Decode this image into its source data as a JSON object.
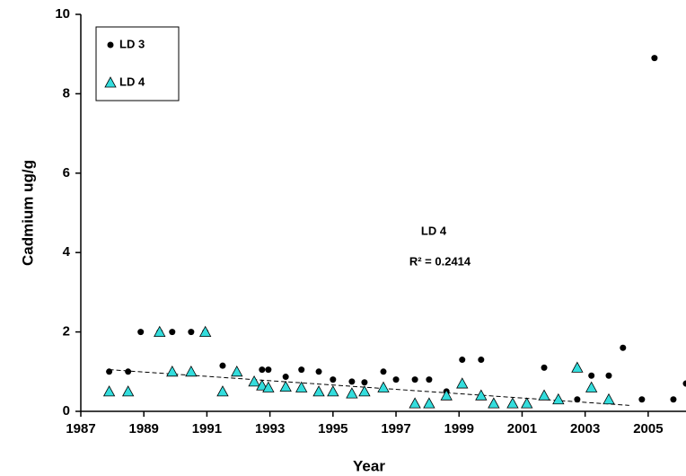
{
  "chart_data": {
    "type": "scatter",
    "xlabel": "Year",
    "ylabel": "Cadmium ug/g",
    "xlim": [
      1987,
      2006.2
    ],
    "ylim": [
      0,
      10
    ],
    "xticks": [
      1987,
      1989,
      1991,
      1993,
      1995,
      1997,
      1999,
      2001,
      2003,
      2005
    ],
    "yticks": [
      0,
      2,
      4,
      6,
      8,
      10
    ],
    "legend": "upper left",
    "series": [
      {
        "name": "LD 3",
        "color": "#000000",
        "marker": "circle",
        "x": [
          1987.9,
          1988.5,
          1988.9,
          1989.5,
          1989.9,
          1990.5,
          1990.95,
          1991.5,
          1992.75,
          1992.95,
          1993.5,
          1994.0,
          1994.55,
          1995.0,
          1995.6,
          1996.0,
          1996.6,
          1997.0,
          1997.6,
          1998.05,
          1998.6,
          1999.1,
          1999.7,
          2001.7,
          2002.75,
          2003.2,
          2003.75,
          2004.2,
          2004.8,
          2005.2,
          2005.8,
          2006.2
        ],
        "values": [
          1.0,
          1.0,
          2.0,
          2.0,
          2.0,
          2.0,
          2.0,
          1.15,
          1.05,
          1.05,
          0.87,
          1.05,
          1.0,
          0.8,
          0.75,
          0.73,
          1.0,
          0.8,
          0.8,
          0.8,
          0.5,
          1.3,
          1.3,
          1.1,
          0.3,
          0.9,
          0.9,
          1.6,
          0.3,
          8.9,
          0.3,
          0.7
        ]
      },
      {
        "name": "LD 4",
        "color": "#33dddd",
        "marker": "triangle",
        "x": [
          1987.9,
          1988.5,
          1989.5,
          1989.9,
          1990.5,
          1990.95,
          1991.5,
          1991.95,
          1992.5,
          1992.75,
          1992.95,
          1993.5,
          1994.0,
          1994.55,
          1995.0,
          1995.6,
          1996.0,
          1996.6,
          1997.6,
          1998.05,
          1998.6,
          1999.1,
          1999.7,
          2000.1,
          2000.7,
          2001.15,
          2001.7,
          2002.15,
          2002.75,
          2003.2,
          2003.75
        ],
        "values": [
          0.5,
          0.5,
          2.0,
          1.0,
          1.0,
          2.0,
          0.5,
          1.0,
          0.75,
          0.65,
          0.6,
          0.62,
          0.6,
          0.5,
          0.5,
          0.45,
          0.5,
          0.6,
          0.2,
          0.2,
          0.4,
          0.7,
          0.4,
          0.2,
          0.2,
          0.2,
          0.4,
          0.3,
          1.1,
          0.6,
          0.3
        ]
      }
    ],
    "trendline": {
      "x": [
        1987.9,
        2004.4
      ],
      "values": [
        1.05,
        0.15
      ]
    },
    "annotation": {
      "title": "LD 4",
      "r_squared": "R² = 0.2414"
    }
  }
}
